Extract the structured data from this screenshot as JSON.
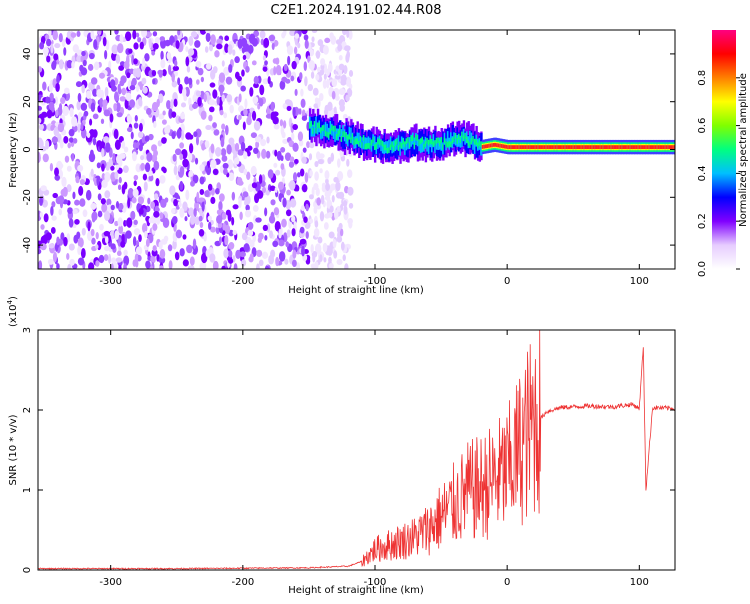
{
  "chart_data": [
    {
      "type": "heatmap",
      "title": "C2E1.2024.191.02.44.R08",
      "xlabel": "Height of straight line (km)",
      "ylabel": "Frequency (Hz)",
      "xlim": [
        -355,
        127
      ],
      "ylim": [
        -50,
        50
      ],
      "x_ticks": [
        -300,
        -200,
        -100,
        0,
        100
      ],
      "x_tick_labels": [
        "-300",
        "-200",
        "-100",
        "0",
        "100"
      ],
      "y_ticks": [
        -40,
        -20,
        0,
        20,
        40
      ],
      "y_tick_labels": [
        "-40",
        "-20",
        "0",
        "20",
        "40"
      ],
      "colorbar": {
        "label": "Normalized spectral amplitude",
        "range": [
          0,
          1
        ],
        "ticks": [
          0.0,
          0.2,
          0.4,
          0.6,
          0.8
        ],
        "tick_labels": [
          "0.0",
          "0.2",
          "0.4",
          "0.6",
          "0.8"
        ],
        "colors": [
          "#ffffff",
          "#e6ccff",
          "#8000ff",
          "#0000ff",
          "#00bfff",
          "#00ff80",
          "#80ff00",
          "#ffff00",
          "#ff8000",
          "#ff0000",
          "#ff0080"
        ]
      },
      "ridge": {
        "x": [
          -150,
          -130,
          -110,
          -90,
          -70,
          -50,
          -40,
          -30,
          -20,
          -10,
          0,
          20,
          60,
          90,
          127
        ],
        "y": [
          10,
          7,
          3,
          1,
          3,
          2,
          5,
          4,
          1,
          2,
          1,
          1,
          1,
          1,
          1
        ]
      },
      "grid": false
    },
    {
      "type": "line",
      "xlabel": "Height of straight line (km)",
      "ylabel": "SNR (10 * v/v)",
      "y_scale_label": "(x10",
      "y_scale_exp": "4",
      "y_scale_close": ")",
      "xlim": [
        -355,
        127
      ],
      "ylim": [
        0,
        30000
      ],
      "x_ticks": [
        -300,
        -200,
        -100,
        0,
        100
      ],
      "x_tick_labels": [
        "-300",
        "-200",
        "-100",
        "0",
        "100"
      ],
      "y_ticks": [
        0,
        10000,
        20000,
        30000
      ],
      "y_tick_labels": [
        "0",
        "1",
        "2",
        "3"
      ],
      "color": "#ee3333",
      "series": [
        {
          "x": [
            -355,
            -300,
            -250,
            -200,
            -150,
            -120,
            -110,
            -100,
            -90,
            -80,
            -70,
            -60,
            -50,
            -40,
            -30,
            -20,
            -10,
            0,
            10,
            20,
            30,
            40,
            60,
            80,
            95,
            100,
            103,
            105,
            110,
            127
          ],
          "y": [
            100,
            100,
            100,
            150,
            200,
            400,
            1000,
            2500,
            3000,
            3500,
            4000,
            5000,
            6500,
            8000,
            9500,
            10000,
            11000,
            12000,
            15000,
            18000,
            19800,
            20300,
            20500,
            20400,
            20700,
            20200,
            28000,
            10000,
            20300,
            20200
          ]
        }
      ],
      "grid": false
    }
  ]
}
